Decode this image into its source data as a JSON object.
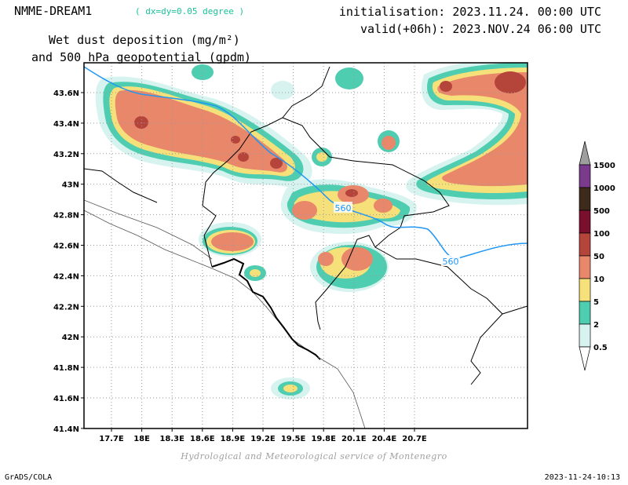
{
  "header": {
    "model": "NMME-DREAM1",
    "resolution": "( dx=dy=0.05 degree )",
    "variable_line1": "Wet dust deposition (mg/m²)",
    "variable_line2": "and 500 hPa geopotential (gpdm)",
    "initialisation": "initialisation: 2023.11.24. 00:00 UTC",
    "valid": "valid(+06h): 2023.NOV.24 06:00 UTC"
  },
  "map": {
    "x_ticks": [
      "17.7E",
      "18E",
      "18.3E",
      "18.6E",
      "18.9E",
      "19.2E",
      "19.5E",
      "19.8E",
      "20.1E",
      "20.4E",
      "20.7E"
    ],
    "y_ticks": [
      "43.6N",
      "43.4N",
      "43.2N",
      "43N",
      "42.8N",
      "42.6N",
      "42.4N",
      "42.2N",
      "42N",
      "41.8N",
      "41.6N",
      "41.4N"
    ],
    "contour_labels": [
      "560",
      "560"
    ]
  },
  "colorbar": {
    "levels": [
      "1500",
      "1000",
      "500",
      "100",
      "50",
      "10",
      "5",
      "2",
      "0.5"
    ],
    "colors": [
      "#7a3b8c",
      "#3d2a1a",
      "#7a0f2e",
      "#b5443a",
      "#e8876a",
      "#f5e07a",
      "#4ecdb0",
      "#d6f3ef"
    ]
  },
  "footer": {
    "credit": "Hydrological and Meteorological service of Montenegro",
    "software": "GrADS/COLA",
    "timestamp": "2023-11-24-10:13"
  }
}
